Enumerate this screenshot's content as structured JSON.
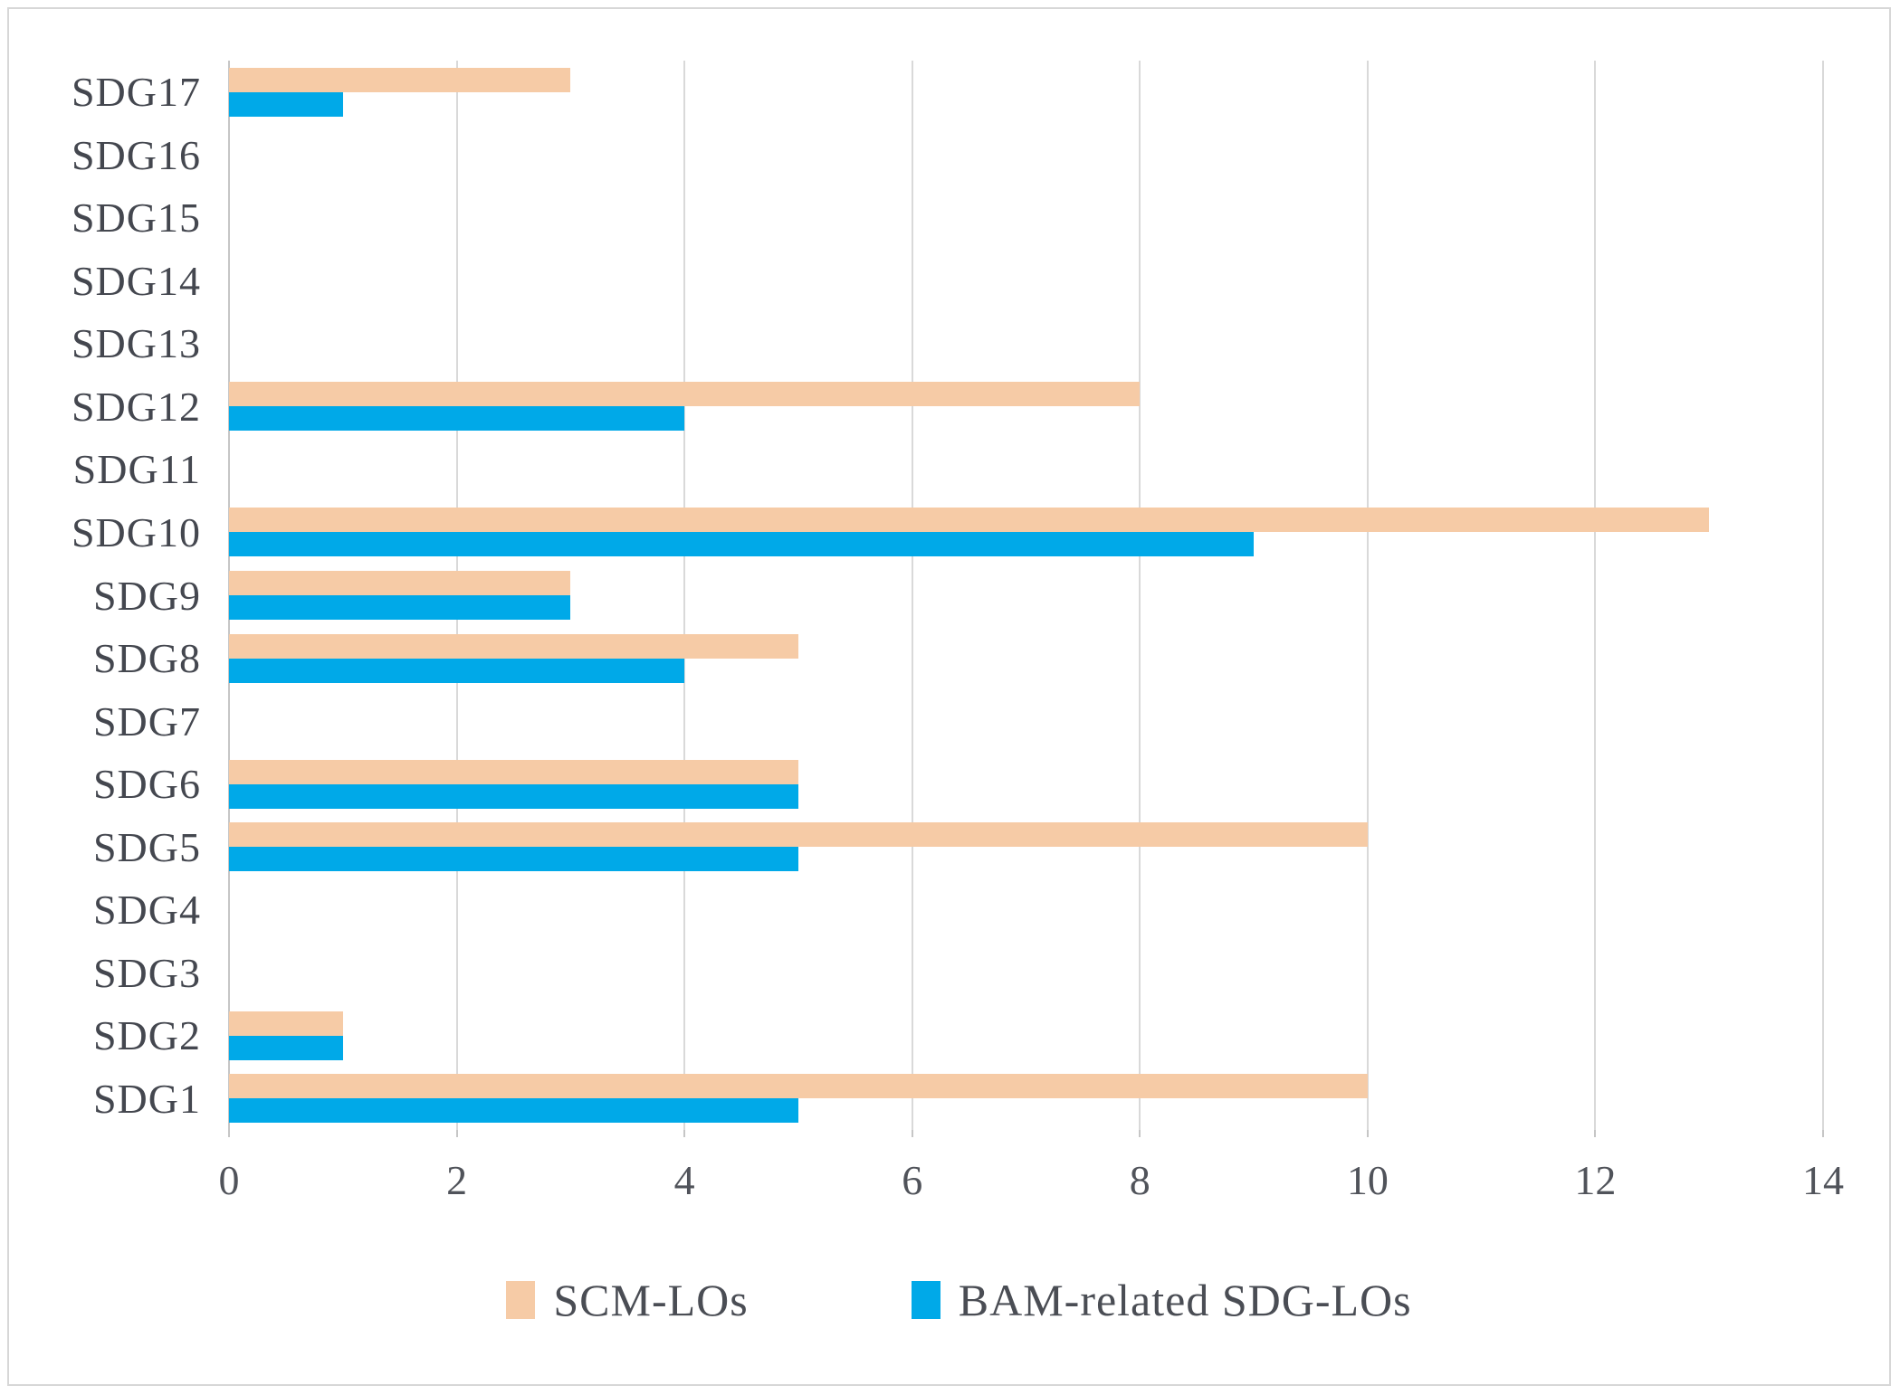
{
  "figure": {
    "background": "#ffffff",
    "border_color": "#d7d7d7",
    "gridline_color": "#d9d9d9",
    "axis_line_color": "#c6c6c6",
    "label_color": "#44474f"
  },
  "chart_data": {
    "type": "bar",
    "orientation": "horizontal",
    "title": "",
    "xlabel": "",
    "ylabel": "",
    "xlim": [
      0,
      14
    ],
    "xticks": [
      0,
      2,
      4,
      6,
      8,
      10,
      12,
      14
    ],
    "grid": true,
    "legend_position": "bottom",
    "categories": [
      "SDG17",
      "SDG16",
      "SDG15",
      "SDG14",
      "SDG13",
      "SDG12",
      "SDG11",
      "SDG10",
      "SDG9",
      "SDG8",
      "SDG7",
      "SDG6",
      "SDG5",
      "SDG4",
      "SDG3",
      "SDG2",
      "SDG1"
    ],
    "series": [
      {
        "name": "SCM-LOs",
        "color": "#f6cba6",
        "values": [
          3,
          0,
          0,
          0,
          0,
          8,
          0,
          13,
          3,
          5,
          0,
          5,
          10,
          0,
          0,
          1,
          10
        ]
      },
      {
        "name": "BAM-related SDG-LOs",
        "color": "#00a9e8",
        "values": [
          1,
          0,
          0,
          0,
          0,
          4,
          0,
          9,
          3,
          4,
          0,
          5,
          5,
          0,
          0,
          1,
          5
        ]
      }
    ]
  }
}
